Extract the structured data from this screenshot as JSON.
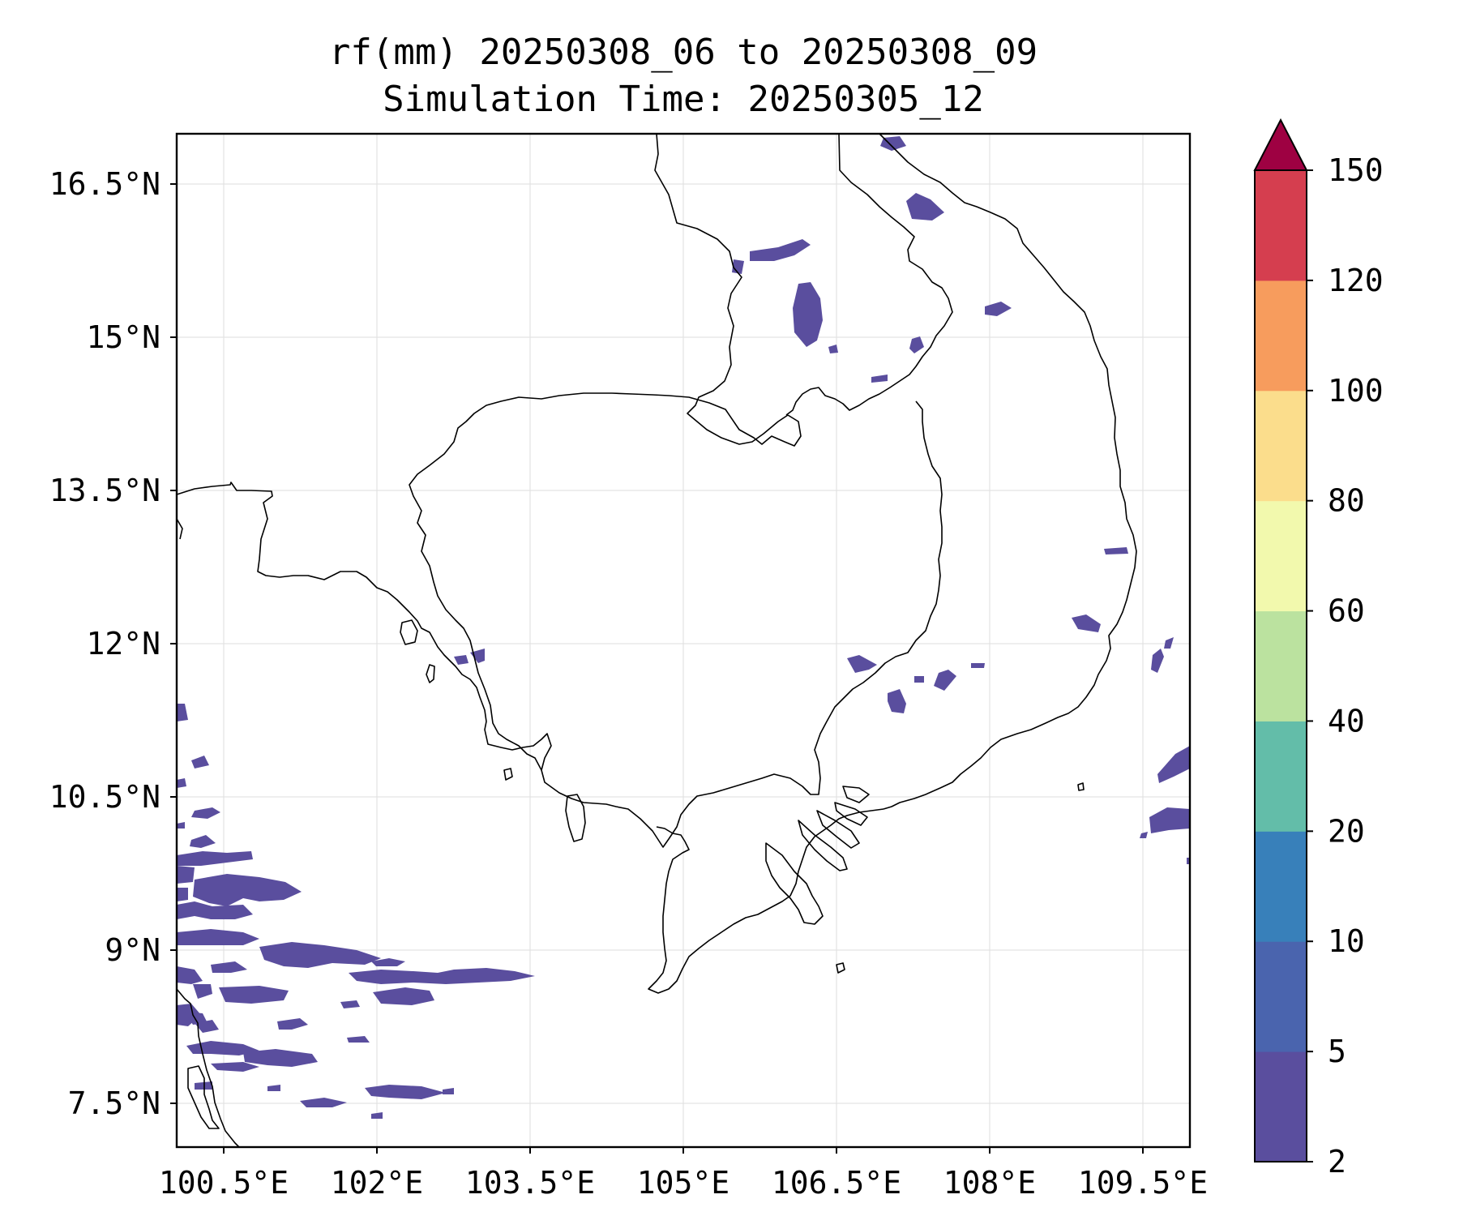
{
  "title": {
    "line1": "rf(mm) 20250308_06 to 20250308_09",
    "line2": "Simulation Time: 20250305_12"
  },
  "axes": {
    "lon_ticks": [
      "100.5°E",
      "102°E",
      "103.5°E",
      "105°E",
      "106.5°E",
      "108°E",
      "109.5°E"
    ],
    "lat_ticks": [
      "16.5°N",
      "15°N",
      "13.5°N",
      "12°N",
      "10.5°N",
      "9°N",
      "7.5°N"
    ],
    "grid": true
  },
  "colorbar": {
    "levels": [
      "2",
      "5",
      "10",
      "20",
      "40",
      "60",
      "80",
      "100",
      "120",
      "150"
    ],
    "colors": [
      "#5a4e9e",
      "#4a64ae",
      "#3880ba",
      "#63bda9",
      "#bbe29f",
      "#f2f9ad",
      "#fbdd8c",
      "#f79c5d",
      "#d53e4f",
      "#9e0142"
    ],
    "extend": "max"
  },
  "rain_color": "#5a4e9e",
  "coast_color": "#000000"
}
